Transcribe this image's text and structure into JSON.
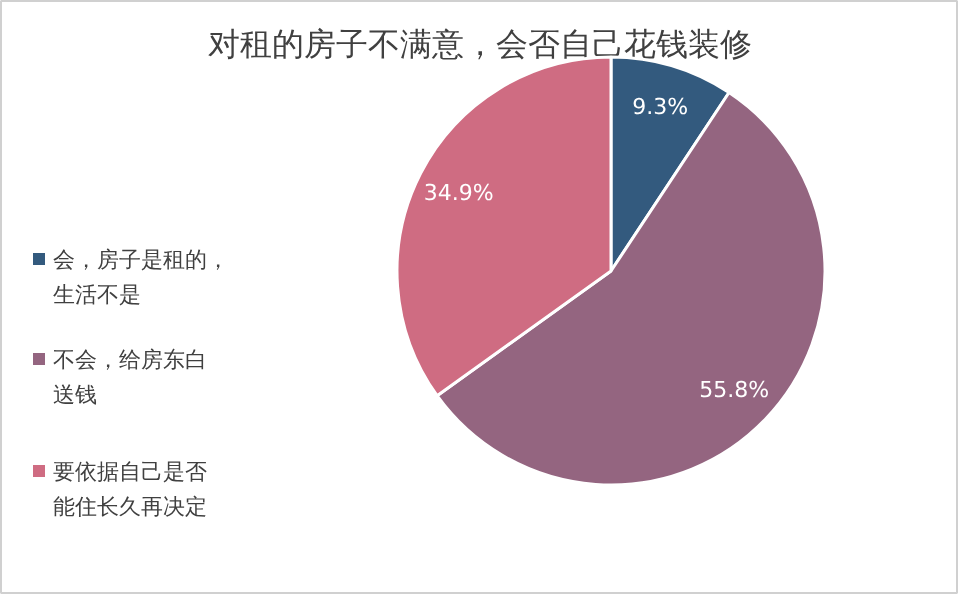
{
  "chart_data": {
    "type": "pie",
    "title": "对租的房子不满意，会否自己花钱装修",
    "categories": [
      "会，房子是租的，生活不是",
      "不会，给房东白送钱",
      "要依据自己是否能住长久再决定"
    ],
    "values": [
      9.3,
      55.8,
      34.9
    ],
    "colors": [
      "#335a7e",
      "#946580",
      "#cf6c82"
    ],
    "value_labels": [
      "9.3%",
      "55.8%",
      "34.9%"
    ],
    "legend": "left"
  }
}
